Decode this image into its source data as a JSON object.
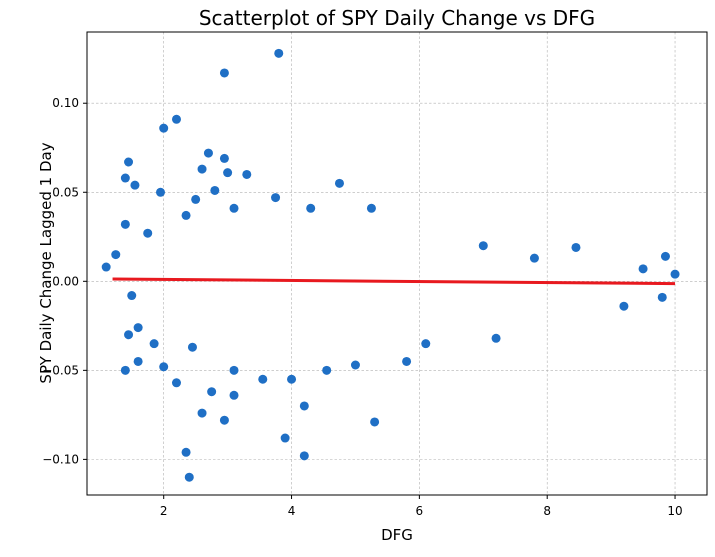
{
  "chart_data": {
    "type": "scatter",
    "title": "Scatterplot of SPY Daily Change vs DFG",
    "xlabel": "DFG",
    "ylabel": "SPY Daily Change Lagged 1 Day",
    "xlim": [
      0.8,
      10.5
    ],
    "ylim": [
      -0.12,
      0.14
    ],
    "xticks": [
      2,
      4,
      6,
      8,
      10
    ],
    "xtick_labels": [
      "2",
      "4",
      "6",
      "8",
      "10"
    ],
    "yticks": [
      -0.1,
      -0.05,
      0.0,
      0.05,
      0.1
    ],
    "ytick_labels": [
      "−0.10",
      "−0.05",
      "0.00",
      "0.05",
      "0.10"
    ],
    "grid": true,
    "legend": "none",
    "point_color": "#1f6fc5",
    "trend_color": "#e8191f",
    "trendline": {
      "x": [
        1.2,
        10.0
      ],
      "y": [
        0.0013,
        -0.0013
      ]
    },
    "series": [
      {
        "points": [
          [
            3.8,
            0.128
          ],
          [
            2.95,
            0.117
          ],
          [
            2.2,
            0.091
          ],
          [
            2.0,
            0.086
          ],
          [
            1.45,
            0.067
          ],
          [
            2.7,
            0.072
          ],
          [
            1.4,
            0.058
          ],
          [
            1.55,
            0.054
          ],
          [
            1.95,
            0.05
          ],
          [
            2.6,
            0.063
          ],
          [
            2.95,
            0.069
          ],
          [
            3.0,
            0.061
          ],
          [
            3.3,
            0.06
          ],
          [
            2.8,
            0.051
          ],
          [
            3.75,
            0.047
          ],
          [
            4.75,
            0.055
          ],
          [
            4.3,
            0.041
          ],
          [
            5.25,
            0.041
          ],
          [
            2.5,
            0.046
          ],
          [
            3.1,
            0.041
          ],
          [
            2.35,
            0.037
          ],
          [
            1.4,
            0.032
          ],
          [
            1.75,
            0.027
          ],
          [
            1.25,
            0.015
          ],
          [
            1.1,
            0.008
          ],
          [
            1.5,
            -0.008
          ],
          [
            1.6,
            -0.026
          ],
          [
            1.45,
            -0.03
          ],
          [
            1.4,
            -0.05
          ],
          [
            1.6,
            -0.045
          ],
          [
            1.85,
            -0.035
          ],
          [
            2.0,
            -0.048
          ],
          [
            2.2,
            -0.057
          ],
          [
            2.45,
            -0.037
          ],
          [
            2.6,
            -0.074
          ],
          [
            2.75,
            -0.062
          ],
          [
            2.95,
            -0.078
          ],
          [
            3.1,
            -0.064
          ],
          [
            2.35,
            -0.096
          ],
          [
            2.4,
            -0.11
          ],
          [
            3.9,
            -0.088
          ],
          [
            4.2,
            -0.07
          ],
          [
            4.2,
            -0.098
          ],
          [
            5.3,
            -0.079
          ],
          [
            3.55,
            -0.055
          ],
          [
            4.0,
            -0.055
          ],
          [
            4.55,
            -0.05
          ],
          [
            3.1,
            -0.05
          ],
          [
            5.8,
            -0.045
          ],
          [
            6.1,
            -0.035
          ],
          [
            7.2,
            -0.032
          ],
          [
            5.0,
            -0.047
          ],
          [
            9.2,
            -0.014
          ],
          [
            9.8,
            -0.009
          ],
          [
            10.0,
            0.004
          ],
          [
            9.85,
            0.014
          ],
          [
            9.5,
            0.007
          ],
          [
            8.45,
            0.019
          ],
          [
            7.8,
            0.013
          ],
          [
            7.0,
            0.02
          ]
        ]
      }
    ]
  }
}
